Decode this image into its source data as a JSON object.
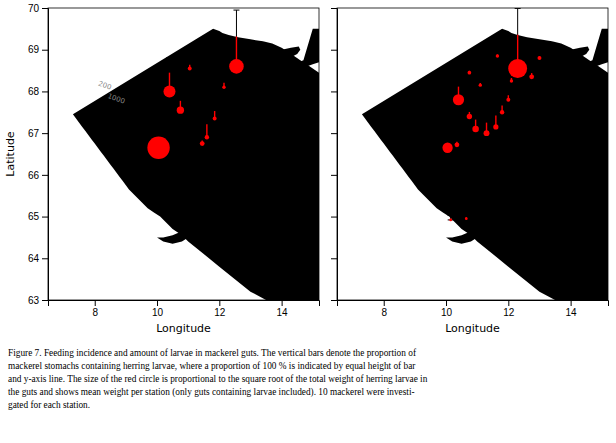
{
  "chart_data": [
    {
      "type": "scatter",
      "xlabel": "Longitude",
      "ylabel": "Latitude",
      "xlim": [
        6.5,
        15.2
      ],
      "ylim": [
        63,
        70
      ],
      "xticks": [
        8,
        10,
        12,
        14
      ],
      "yticks": [
        63,
        64,
        65,
        66,
        67,
        68,
        69,
        70
      ],
      "color": "#ff0000",
      "x": [
        10.05,
        10.4,
        10.75,
        11.05,
        11.45,
        11.6,
        11.85,
        12.15,
        12.55
      ],
      "y": [
        66.65,
        68.0,
        67.55,
        68.55,
        66.75,
        66.9,
        67.35,
        68.1,
        68.6
      ],
      "sizes": [
        260,
        75,
        28,
        8,
        12,
        10,
        8,
        6,
        110
      ],
      "bar_total": [
        0.55,
        0.9,
        0.5,
        0.35,
        0.3,
        0.7,
        0.45,
        0.35,
        1.5
      ],
      "bar_red": [
        0.15,
        0.5,
        0.25,
        0.1,
        0.08,
        0.35,
        0.2,
        0.12,
        0.8
      ],
      "annotations": [
        {
          "text": "200",
          "x": 8.1,
          "y": 68.15
        },
        {
          "text": "1000",
          "x": 8.4,
          "y": 67.85
        }
      ],
      "land": [
        {
          "x": [
            11.8,
            12.0,
            12.1,
            12.3,
            12.6,
            13.0,
            13.4,
            13.7,
            14.0,
            14.2,
            14.4,
            14.6,
            14.8,
            15.0,
            15.2,
            15.2,
            15.2,
            14.5,
            14.0,
            13.5,
            13.0,
            12.5,
            12.0,
            11.5,
            11.0,
            10.8,
            10.5,
            10.3,
            10.1,
            9.9,
            9.7,
            9.5,
            9.3,
            9.1,
            9.0,
            8.9,
            8.8,
            8.7,
            8.6,
            8.5,
            8.4,
            8.3,
            8.2,
            8.1,
            8.0,
            7.9,
            7.8,
            7.7,
            7.6,
            7.5,
            7.4,
            7.3
          ],
          "y": [
            69.5,
            69.45,
            69.4,
            69.35,
            69.3,
            69.25,
            69.2,
            69.15,
            69.05,
            68.95,
            68.85,
            68.75,
            68.65,
            68.55,
            68.45,
            63.0,
            63.0,
            63.0,
            63.0,
            63.0,
            63.2,
            63.5,
            63.8,
            64.1,
            64.4,
            64.55,
            64.7,
            64.85,
            65.0,
            65.1,
            65.2,
            65.35,
            65.5,
            65.65,
            65.75,
            65.85,
            65.95,
            66.05,
            66.15,
            66.25,
            66.35,
            66.45,
            66.55,
            66.65,
            66.75,
            66.85,
            66.95,
            67.05,
            67.15,
            67.25,
            67.35,
            67.45
          ]
        },
        {
          "x": [
            13.7,
            14.0,
            14.3,
            14.5,
            14.6,
            14.55,
            14.3,
            14.0,
            13.7
          ],
          "y": [
            68.82,
            68.78,
            68.82,
            68.9,
            69.0,
            69.08,
            69.05,
            69.0,
            68.82
          ]
        },
        {
          "x": [
            14.2,
            14.5,
            14.8,
            15.0,
            15.2,
            15.2,
            15.0,
            14.7,
            14.4,
            14.2
          ],
          "y": [
            68.6,
            68.55,
            68.6,
            68.65,
            68.7,
            69.5,
            69.5,
            68.75,
            68.65,
            68.6
          ]
        },
        {
          "x": [
            12.35,
            12.5,
            12.6,
            12.55,
            12.4,
            12.35
          ],
          "y": [
            68.0,
            68.0,
            68.08,
            68.18,
            68.15,
            68.0
          ]
        },
        {
          "x": [
            10.0,
            10.2,
            10.5,
            10.8,
            11.0,
            11.2,
            11.0,
            10.8,
            10.5,
            10.2,
            10.0
          ],
          "y": [
            64.5,
            64.4,
            64.35,
            64.4,
            64.5,
            64.6,
            64.7,
            64.65,
            64.55,
            64.5,
            64.5
          ]
        }
      ]
    },
    {
      "type": "scatter",
      "xlabel": "Longitude",
      "tick_labels": "x",
      "xlim": [
        6.5,
        15.2
      ],
      "ylim": [
        63,
        70
      ],
      "xticks": [
        8,
        10,
        12,
        14
      ],
      "yticks": [
        63,
        64,
        65,
        66,
        67,
        68,
        69,
        70
      ],
      "color": "#ff0000",
      "x": [
        10.05,
        10.35,
        10.4,
        10.75,
        10.95,
        10.75,
        11.1,
        11.3,
        11.6,
        11.8,
        12.0,
        12.1,
        12.3,
        12.75,
        13.0,
        11.65,
        10.15,
        10.65
      ],
      "y": [
        66.65,
        66.72,
        67.8,
        67.4,
        67.1,
        68.45,
        68.15,
        67.0,
        67.15,
        67.5,
        67.8,
        68.25,
        68.55,
        68.35,
        68.8,
        68.85,
        64.92,
        64.95
      ],
      "sizes": [
        55,
        12,
        65,
        15,
        22,
        7,
        6,
        18,
        14,
        10,
        8,
        6,
        185,
        12,
        8,
        6,
        4,
        4
      ],
      "bar_total": [
        0.2,
        0.22,
        0.65,
        0.35,
        0.45,
        0.2,
        0.18,
        0.5,
        0.55,
        0.38,
        0.3,
        0.22,
        1.6,
        0.3,
        0.12,
        0.15,
        0.12,
        0.18
      ],
      "bar_red": [
        0.05,
        0.08,
        0.35,
        0.12,
        0.25,
        0.05,
        0.06,
        0.28,
        0.3,
        0.18,
        0.12,
        0.08,
        0.9,
        0.1,
        0.04,
        0.04,
        0.03,
        0.04
      ],
      "land": [
        {
          "x": [
            11.8,
            12.0,
            12.1,
            12.3,
            12.6,
            13.0,
            13.4,
            13.7,
            14.0,
            14.2,
            14.4,
            14.6,
            14.8,
            15.0,
            15.2,
            15.2,
            15.2,
            14.5,
            14.0,
            13.5,
            13.0,
            12.5,
            12.0,
            11.5,
            11.0,
            10.8,
            10.5,
            10.3,
            10.1,
            9.9,
            9.7,
            9.5,
            9.3,
            9.1,
            9.0,
            8.9,
            8.8,
            8.7,
            8.6,
            8.5,
            8.4,
            8.3,
            8.2,
            8.1,
            8.0,
            7.9,
            7.8,
            7.7,
            7.6,
            7.5,
            7.4,
            7.3
          ],
          "y": [
            69.5,
            69.45,
            69.4,
            69.35,
            69.3,
            69.25,
            69.2,
            69.15,
            69.05,
            68.95,
            68.85,
            68.75,
            68.65,
            68.55,
            68.45,
            63.0,
            63.0,
            63.0,
            63.0,
            63.0,
            63.2,
            63.5,
            63.8,
            64.1,
            64.4,
            64.55,
            64.7,
            64.85,
            65.0,
            65.1,
            65.2,
            65.35,
            65.5,
            65.65,
            65.75,
            65.85,
            65.95,
            66.05,
            66.15,
            66.25,
            66.35,
            66.45,
            66.55,
            66.65,
            66.75,
            66.85,
            66.95,
            67.05,
            67.15,
            67.25,
            67.35,
            67.45
          ]
        },
        {
          "x": [
            13.7,
            14.0,
            14.3,
            14.5,
            14.6,
            14.55,
            14.3,
            14.0,
            13.7
          ],
          "y": [
            68.82,
            68.78,
            68.82,
            68.9,
            69.0,
            69.08,
            69.05,
            69.0,
            68.82
          ]
        },
        {
          "x": [
            14.2,
            14.5,
            14.8,
            15.0,
            15.2,
            15.2,
            15.0,
            14.7,
            14.4,
            14.2
          ],
          "y": [
            68.6,
            68.55,
            68.6,
            68.65,
            68.7,
            69.5,
            69.5,
            68.75,
            68.65,
            68.6
          ]
        },
        {
          "x": [
            12.35,
            12.5,
            12.6,
            12.55,
            12.4,
            12.35
          ],
          "y": [
            68.0,
            68.0,
            68.08,
            68.18,
            68.15,
            68.0
          ]
        },
        {
          "x": [
            10.0,
            10.2,
            10.5,
            10.8,
            11.0,
            11.2,
            11.0,
            10.8,
            10.5,
            10.2,
            10.0
          ],
          "y": [
            64.5,
            64.4,
            64.35,
            64.4,
            64.5,
            64.6,
            64.7,
            64.65,
            64.55,
            64.5,
            64.5
          ]
        }
      ]
    }
  ],
  "caption": "Figure 7. Feeding incidence and amount of larvae in mackerel guts. The vertical bars denote the proportion of\nmackerel stomachs containing herring larvae, where a proportion of 100 % is indicated by equal height of bar\nand y-axis line. The size of the red circle is proportional to the square root of the total weight of herring larvae in\nthe guts and shows mean weight per station (only guts containing larvae included). 10 mackerel were investi-\ngated for each station."
}
